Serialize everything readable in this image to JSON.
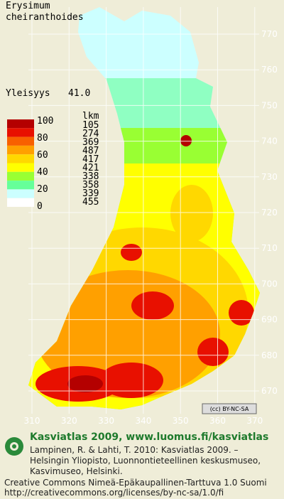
{
  "title": {
    "genus": "Erysimum",
    "species": "cheiranthoides"
  },
  "frequency": {
    "label": "Yleisyys",
    "value": "41.0"
  },
  "legend": {
    "scale_labels": [
      100,
      80,
      60,
      40,
      20,
      0
    ],
    "count_header": "lkm",
    "counts": [
      105,
      274,
      369,
      487,
      417,
      421,
      338,
      358,
      339,
      455
    ],
    "colors": [
      "#b40000",
      "#e81000",
      "#f86000",
      "#ffa000",
      "#ffd800",
      "#ffff00",
      "#99ff33",
      "#66ff99",
      "#ccffff",
      "#ffffff"
    ]
  },
  "grid": {
    "y_labels": [
      770,
      760,
      750,
      740,
      730,
      720,
      710,
      700,
      690,
      680,
      670
    ],
    "x_labels": [
      310,
      320,
      330,
      340,
      350,
      360,
      370
    ]
  },
  "license_badge": "(cc) BY-NC-SA",
  "footer": {
    "heading": "Kasviatlas 2009, www.luomus.fi/kasviatlas",
    "citation": [
      "Lampinen, R. & Lahti, T. 2010: Kasviatlas 2009. –",
      "Helsingin Yliopisto, Luonnontieteellinen keskusmuseo,",
      "Kasvimuseo, Helsinki."
    ],
    "license": [
      "Creative Commons Nimeä-Epäkaupallinen-Tarttuva 1.0 Suomi",
      "http://creativecommons.org/licenses/by-nc-sa/1.0/fi"
    ]
  }
}
